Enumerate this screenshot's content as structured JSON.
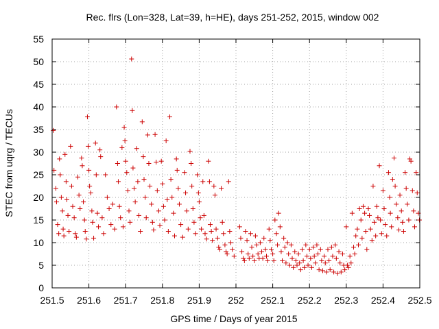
{
  "chart_data": {
    "type": "scatter",
    "title": "Rec. flrs (Lon=328, Lat=39, h=HE), days 251-252, 2015, window 002",
    "xlabel": "GPS time / Days of year 2015",
    "ylabel": "STEC from uqrg / TECUs",
    "xlim": [
      251.5,
      252.5
    ],
    "ylim": [
      0,
      55
    ],
    "xticks": [
      251.5,
      251.6,
      251.7,
      251.8,
      251.9,
      252.0,
      252.1,
      252.2,
      252.3,
      252.4,
      252.5
    ],
    "xtick_labels": [
      "251.5",
      "251.6",
      "251.7",
      "251.8",
      "251.9",
      "252",
      "252.1",
      "252.2",
      "252.3",
      "252.4",
      "252.5"
    ],
    "yticks": [
      0,
      5,
      10,
      15,
      20,
      25,
      30,
      35,
      40,
      45,
      50,
      55
    ],
    "ytick_labels": [
      "0",
      "5",
      "10",
      "15",
      "20",
      "25",
      "30",
      "35",
      "40",
      "45",
      "50",
      "55"
    ],
    "grid": true,
    "marker": "plus",
    "color": "#cc0000",
    "series": [
      {
        "points": [
          [
            251.503,
            34.8
          ],
          [
            251.505,
            26.0
          ],
          [
            251.51,
            22.0
          ],
          [
            251.512,
            19.0
          ],
          [
            251.515,
            14.0
          ],
          [
            251.518,
            12.0
          ],
          [
            251.52,
            28.5
          ],
          [
            251.522,
            25.0
          ],
          [
            251.525,
            20.0
          ],
          [
            251.528,
            17.0
          ],
          [
            251.53,
            13.0
          ],
          [
            251.532,
            11.5
          ],
          [
            251.535,
            29.5
          ],
          [
            251.538,
            23.5
          ],
          [
            251.54,
            19.5
          ],
          [
            251.543,
            16.0
          ],
          [
            251.546,
            12.5
          ],
          [
            251.55,
            31.3
          ],
          [
            251.553,
            22.5
          ],
          [
            251.556,
            18.0
          ],
          [
            251.56,
            15.5
          ],
          [
            251.563,
            12.0
          ],
          [
            251.566,
            11.2
          ],
          [
            251.57,
            24.5
          ],
          [
            251.573,
            20.5
          ],
          [
            251.576,
            17.5
          ],
          [
            251.58,
            28.7
          ],
          [
            251.582,
            27.0
          ],
          [
            251.585,
            19.0
          ],
          [
            251.588,
            15.0
          ],
          [
            251.59,
            12.5
          ],
          [
            251.593,
            10.8
          ],
          [
            251.596,
            37.8
          ],
          [
            251.598,
            31.3
          ],
          [
            251.6,
            26.0
          ],
          [
            251.602,
            22.5
          ],
          [
            251.605,
            21.0
          ],
          [
            251.608,
            17.0
          ],
          [
            251.61,
            14.5
          ],
          [
            251.613,
            11.0
          ],
          [
            251.618,
            32.0
          ],
          [
            251.62,
            25.0
          ],
          [
            251.623,
            16.5
          ],
          [
            251.626,
            13.5
          ],
          [
            251.63,
            30.5
          ],
          [
            251.632,
            29.0
          ],
          [
            251.636,
            15.5
          ],
          [
            251.64,
            12.0
          ],
          [
            251.645,
            25.0
          ],
          [
            251.65,
            20.0
          ],
          [
            251.655,
            17.5
          ],
          [
            251.66,
            14.0
          ],
          [
            251.665,
            18.5
          ],
          [
            251.67,
            13.0
          ],
          [
            251.675,
            40.0
          ],
          [
            251.678,
            27.5
          ],
          [
            251.68,
            23.5
          ],
          [
            251.683,
            18.0
          ],
          [
            251.686,
            15.5
          ],
          [
            251.69,
            31.0
          ],
          [
            251.693,
            13.5
          ],
          [
            251.696,
            35.5
          ],
          [
            251.698,
            32.5
          ],
          [
            251.7,
            28.0
          ],
          [
            251.703,
            25.5
          ],
          [
            251.706,
            21.5
          ],
          [
            251.709,
            17.0
          ],
          [
            251.712,
            14.5
          ],
          [
            251.716,
            50.6
          ],
          [
            251.718,
            39.2
          ],
          [
            251.72,
            26.5
          ],
          [
            251.723,
            22.0
          ],
          [
            251.726,
            19.0
          ],
          [
            251.73,
            30.8
          ],
          [
            251.733,
            23.5
          ],
          [
            251.736,
            16.0
          ],
          [
            251.74,
            12.5
          ],
          [
            251.745,
            36.7
          ],
          [
            251.748,
            29.0
          ],
          [
            251.75,
            24.0
          ],
          [
            251.753,
            20.0
          ],
          [
            251.756,
            15.5
          ],
          [
            251.76,
            33.8
          ],
          [
            251.763,
            27.5
          ],
          [
            251.766,
            22.5
          ],
          [
            251.77,
            18.5
          ],
          [
            251.773,
            14.5
          ],
          [
            251.776,
            12.8
          ],
          [
            251.78,
            33.9
          ],
          [
            251.783,
            27.8
          ],
          [
            251.786,
            21.5
          ],
          [
            251.79,
            17.0
          ],
          [
            251.793,
            13.8
          ],
          [
            251.797,
            28.0
          ],
          [
            251.8,
            23.0
          ],
          [
            251.803,
            18.0
          ],
          [
            251.806,
            15.0
          ],
          [
            251.81,
            32.5
          ],
          [
            251.813,
            19.5
          ],
          [
            251.816,
            12.5
          ],
          [
            251.82,
            37.8
          ],
          [
            251.823,
            24.0
          ],
          [
            251.826,
            20.0
          ],
          [
            251.83,
            16.5
          ],
          [
            251.833,
            11.5
          ],
          [
            251.838,
            28.5
          ],
          [
            251.84,
            26.0
          ],
          [
            251.843,
            22.0
          ],
          [
            251.846,
            18.5
          ],
          [
            251.85,
            14.0
          ],
          [
            251.855,
            11.2
          ],
          [
            251.86,
            25.5
          ],
          [
            251.863,
            21.0
          ],
          [
            251.866,
            17.0
          ],
          [
            251.87,
            13.0
          ],
          [
            251.875,
            30.2
          ],
          [
            251.878,
            27.5
          ],
          [
            251.88,
            22.5
          ],
          [
            251.883,
            17.5
          ],
          [
            251.886,
            14.5
          ],
          [
            251.89,
            12.0
          ],
          [
            251.895,
            25.0
          ],
          [
            251.898,
            21.0
          ],
          [
            251.9,
            19.0
          ],
          [
            251.903,
            15.5
          ],
          [
            251.906,
            13.0
          ],
          [
            251.91,
            23.5
          ],
          [
            251.913,
            16.0
          ],
          [
            251.916,
            12.0
          ],
          [
            251.92,
            10.8
          ],
          [
            251.925,
            28.0
          ],
          [
            251.928,
            23.5
          ],
          [
            251.93,
            14.0
          ],
          [
            251.933,
            12.5
          ],
          [
            251.936,
            10.5
          ],
          [
            251.94,
            22.5
          ],
          [
            251.943,
            20.5
          ],
          [
            251.946,
            13.0
          ],
          [
            251.95,
            11.0
          ],
          [
            251.953,
            9.0
          ],
          [
            251.956,
            8.5
          ],
          [
            251.96,
            22.0
          ],
          [
            251.963,
            14.5
          ],
          [
            251.966,
            12.0
          ],
          [
            251.97,
            9.5
          ],
          [
            251.973,
            8.0
          ],
          [
            251.976,
            7.5
          ],
          [
            251.98,
            23.5
          ],
          [
            251.983,
            12.5
          ],
          [
            251.986,
            10.0
          ],
          [
            251.99,
            8.5
          ],
          [
            251.995,
            7.0
          ],
          [
            252.01,
            13.5
          ],
          [
            252.013,
            11.0
          ],
          [
            252.016,
            8.0
          ],
          [
            252.02,
            6.5
          ],
          [
            252.023,
            6.0
          ],
          [
            252.026,
            12.5
          ],
          [
            252.03,
            10.5
          ],
          [
            252.033,
            7.5
          ],
          [
            252.036,
            6.5
          ],
          [
            252.04,
            12.0
          ],
          [
            252.043,
            9.0
          ],
          [
            252.046,
            7.0
          ],
          [
            252.05,
            6.0
          ],
          [
            252.053,
            11.5
          ],
          [
            252.056,
            9.5
          ],
          [
            252.06,
            7.5
          ],
          [
            252.063,
            6.5
          ],
          [
            252.066,
            10.0
          ],
          [
            252.07,
            8.0
          ],
          [
            252.073,
            6.5
          ],
          [
            252.076,
            11.0
          ],
          [
            252.08,
            8.5
          ],
          [
            252.083,
            7.0
          ],
          [
            252.086,
            6.0
          ],
          [
            252.09,
            13.0
          ],
          [
            252.093,
            10.5
          ],
          [
            252.096,
            8.5
          ],
          [
            252.1,
            7.5
          ],
          [
            252.103,
            6.0
          ],
          [
            252.106,
            15.0
          ],
          [
            252.11,
            12.0
          ],
          [
            252.113,
            9.5
          ],
          [
            252.116,
            16.5
          ],
          [
            252.12,
            13.5
          ],
          [
            252.123,
            8.0
          ],
          [
            252.126,
            6.0
          ],
          [
            252.13,
            11.0
          ],
          [
            252.133,
            9.0
          ],
          [
            252.136,
            5.5
          ],
          [
            252.14,
            10.0
          ],
          [
            252.143,
            7.5
          ],
          [
            252.146,
            5.0
          ],
          [
            252.15,
            9.5
          ],
          [
            252.153,
            6.5
          ],
          [
            252.156,
            4.5
          ],
          [
            252.16,
            8.0
          ],
          [
            252.163,
            6.0
          ],
          [
            252.166,
            5.0
          ],
          [
            252.17,
            7.5
          ],
          [
            252.173,
            5.5
          ],
          [
            252.176,
            4.0
          ],
          [
            252.18,
            8.5
          ],
          [
            252.183,
            6.0
          ],
          [
            252.186,
            4.5
          ],
          [
            252.19,
            9.5
          ],
          [
            252.193,
            7.0
          ],
          [
            252.196,
            5.0
          ],
          [
            252.2,
            8.5
          ],
          [
            252.203,
            6.5
          ],
          [
            252.206,
            4.5
          ],
          [
            252.21,
            9.0
          ],
          [
            252.213,
            7.0
          ],
          [
            252.216,
            5.5
          ],
          [
            252.22,
            9.5
          ],
          [
            252.223,
            7.5
          ],
          [
            252.226,
            4.0
          ],
          [
            252.23,
            8.5
          ],
          [
            252.233,
            6.0
          ],
          [
            252.236,
            3.8
          ],
          [
            252.24,
            7.0
          ],
          [
            252.243,
            5.5
          ],
          [
            252.246,
            3.5
          ],
          [
            252.25,
            8.5
          ],
          [
            252.253,
            6.0
          ],
          [
            252.256,
            4.0
          ],
          [
            252.26,
            9.0
          ],
          [
            252.263,
            7.0
          ],
          [
            252.266,
            3.5
          ],
          [
            252.27,
            9.5
          ],
          [
            252.273,
            6.5
          ],
          [
            252.276,
            3.2
          ],
          [
            252.28,
            8.0
          ],
          [
            252.283,
            5.5
          ],
          [
            252.286,
            3.5
          ],
          [
            252.29,
            7.5
          ],
          [
            252.293,
            5.0
          ],
          [
            252.296,
            4.0
          ],
          [
            252.3,
            13.5
          ],
          [
            252.303,
            5.0
          ],
          [
            252.306,
            4.5
          ],
          [
            252.31,
            7.0
          ],
          [
            252.313,
            5.5
          ],
          [
            252.316,
            16.5
          ],
          [
            252.32,
            9.0
          ],
          [
            252.323,
            7.5
          ],
          [
            252.326,
            11.5
          ],
          [
            252.33,
            13.0
          ],
          [
            252.333,
            9.5
          ],
          [
            252.336,
            17.5
          ],
          [
            252.34,
            15.0
          ],
          [
            252.343,
            11.0
          ],
          [
            252.346,
            18.0
          ],
          [
            252.35,
            16.5
          ],
          [
            252.353,
            12.5
          ],
          [
            252.356,
            8.5
          ],
          [
            252.36,
            17.5
          ],
          [
            252.363,
            16.0
          ],
          [
            252.366,
            13.0
          ],
          [
            252.37,
            10.5
          ],
          [
            252.373,
            22.5
          ],
          [
            252.376,
            14.5
          ],
          [
            252.38,
            11.5
          ],
          [
            252.383,
            18.0
          ],
          [
            252.386,
            15.5
          ],
          [
            252.39,
            27.0
          ],
          [
            252.393,
            15.0
          ],
          [
            252.396,
            12.0
          ],
          [
            252.4,
            21.5
          ],
          [
            252.403,
            17.5
          ],
          [
            252.406,
            14.0
          ],
          [
            252.41,
            11.5
          ],
          [
            252.415,
            25.5
          ],
          [
            252.418,
            20.0
          ],
          [
            252.42,
            16.5
          ],
          [
            252.423,
            13.5
          ],
          [
            252.426,
            24.0
          ],
          [
            252.43,
            28.7
          ],
          [
            252.433,
            22.5
          ],
          [
            252.436,
            18.5
          ],
          [
            252.44,
            15.5
          ],
          [
            252.443,
            12.8
          ],
          [
            252.446,
            20.5
          ],
          [
            252.45,
            17.0
          ],
          [
            252.453,
            14.5
          ],
          [
            252.456,
            12.5
          ],
          [
            252.46,
            25.5
          ],
          [
            252.463,
            22.0
          ],
          [
            252.466,
            18.5
          ],
          [
            252.47,
            15.0
          ],
          [
            252.473,
            28.5
          ],
          [
            252.476,
            28.0
          ],
          [
            252.48,
            21.5
          ],
          [
            252.483,
            17.0
          ],
          [
            252.486,
            13.5
          ],
          [
            252.49,
            25.5
          ],
          [
            252.493,
            21.0
          ],
          [
            252.496,
            16.5
          ],
          [
            252.499,
            15.0
          ]
        ]
      }
    ]
  }
}
